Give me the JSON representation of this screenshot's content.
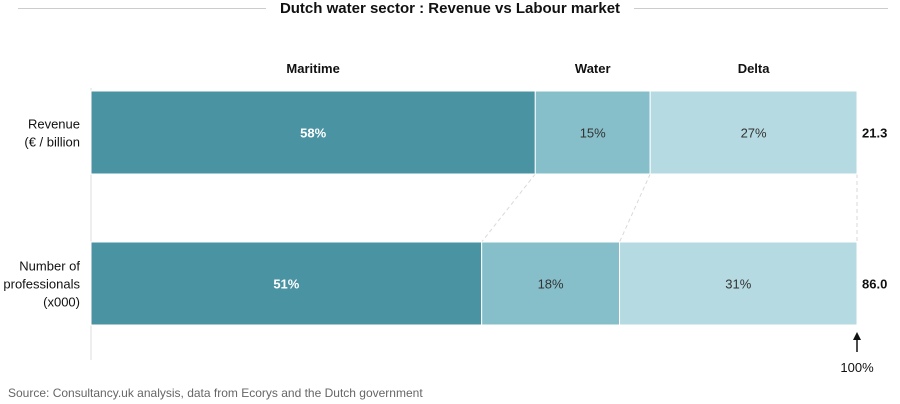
{
  "chart_data": {
    "type": "bar",
    "stacked": true,
    "normalized": true,
    "title": "Dutch water sector : Revenue vs Labour market",
    "categories": [
      {
        "label_lines": [
          "Revenue",
          "(€ / billion"
        ],
        "total": "21.3"
      },
      {
        "label_lines": [
          "Number of",
          "professionals",
          "(x000)"
        ],
        "total": "86.0"
      }
    ],
    "series": [
      {
        "name": "Maritime",
        "values": [
          58,
          51
        ],
        "color": "#4a93a3"
      },
      {
        "name": "Water",
        "values": [
          15,
          18
        ],
        "color": "#86bfca"
      },
      {
        "name": "Delta",
        "values": [
          27,
          31
        ],
        "color": "#b6dae1"
      }
    ],
    "value_suffix": "%",
    "xlim": [
      0,
      100
    ],
    "end_marker": "100%"
  },
  "source": "Source: Consultancy.uk analysis, data from Ecorys and the Dutch government"
}
